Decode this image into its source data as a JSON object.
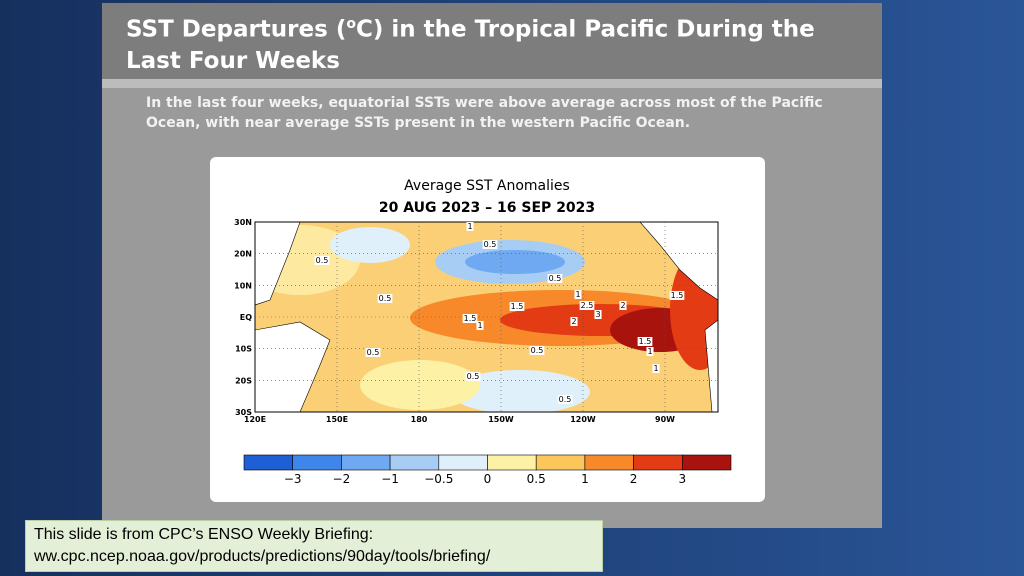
{
  "slide": {
    "title_before": "SST Departures (",
    "title_sup": "o",
    "title_after": "C) in the Tropical Pacific During the Last Four Weeks",
    "summary": "In the last four weeks, equatorial SSTs were above average across most of the Pacific Ocean, with near average SSTs present in the western Pacific Ocean."
  },
  "map": {
    "title": "Average SST Anomalies",
    "subtitle": "20 AUG 2023 – 16 SEP 2023",
    "lat_labels": [
      "30N",
      "20N",
      "10N",
      "EQ",
      "10S",
      "20S",
      "30S"
    ],
    "lon_labels": [
      "120E",
      "150E",
      "180",
      "150W",
      "120W",
      "90W"
    ],
    "contour_labels": [
      "0.5",
      "1",
      "0.5",
      "0.5",
      "0.5",
      "1",
      "1.5",
      "2.5",
      "2",
      "1.5",
      "1.5",
      "1",
      "2",
      "3",
      "1.5",
      "1",
      "1",
      "0.5",
      "0.5",
      "0.5",
      "0.5"
    ],
    "colorbar": {
      "labels": [
        "−3",
        "−2",
        "−1",
        "−0.5",
        "0",
        "0.5",
        "1",
        "2",
        "3"
      ],
      "colors": [
        "#1f5fd6",
        "#3f86ea",
        "#6ea9f2",
        "#a7cdf5",
        "#dff0fb",
        "#fdf1a6",
        "#fbc75a",
        "#f8892a",
        "#e33b14",
        "#a8130d"
      ]
    }
  },
  "footer": {
    "line1": "This slide is from CPC’s ENSO Weekly Briefing:",
    "line2": "ww.cpc.ncep.noaa.gov/products/predictions/90day/tools/briefing/"
  }
}
